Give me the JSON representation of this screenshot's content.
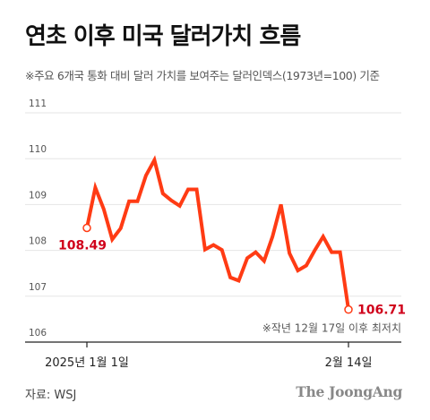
{
  "title": "연초 이후 미국 달러가치 흐름",
  "subtitle": "※주요 6개국 통화 대비 달러 가치를 보여주는 달러인덱스(1973년=100) 기준",
  "source": "자료: WSJ",
  "logo": "The JoongAng",
  "colors": {
    "line": "#ff3b14",
    "label": "#d0021b",
    "grid": "#e6e6e6",
    "axis": "#222222",
    "marker_fill": "#ffffff"
  },
  "chart_data": {
    "type": "line",
    "ylim": [
      106,
      111
    ],
    "yticks": [
      "106",
      "107",
      "108",
      "109",
      "110",
      "111"
    ],
    "xticks": [
      {
        "label": "2025년 1월 1일",
        "index": 0
      },
      {
        "label": "2월 14일",
        "index": 31
      }
    ],
    "values": [
      108.49,
      109.37,
      108.9,
      108.24,
      108.48,
      109.07,
      109.07,
      109.63,
      109.97,
      109.24,
      109.09,
      108.97,
      109.33,
      109.33,
      108.02,
      108.12,
      108.01,
      107.41,
      107.34,
      107.83,
      107.96,
      107.77,
      108.3,
      109.0,
      107.94,
      107.56,
      107.67,
      108.0,
      108.3,
      107.96,
      107.96,
      106.71
    ],
    "annotations": {
      "start_label": "108.49",
      "end_label": "106.71",
      "end_note": "※작년 12월 17일 이후 최저치"
    }
  }
}
